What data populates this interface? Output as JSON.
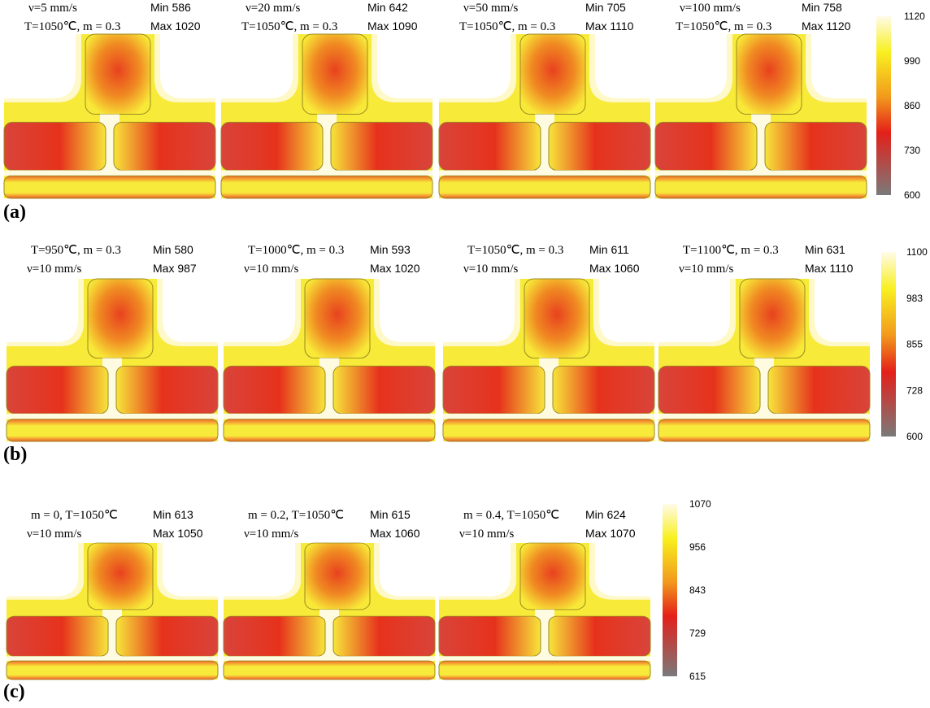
{
  "panels": [
    {
      "label": "(a)",
      "items": [
        {
          "line1": "ν=5 mm/s",
          "line2": "T=1050℃, m = 0.3",
          "min": "Min 586",
          "max": "Max 1020"
        },
        {
          "line1": "ν=20 mm/s",
          "line2": "T=1050℃, m = 0.3",
          "min": "Min 642",
          "max": "Max 1090"
        },
        {
          "line1": "ν=50 mm/s",
          "line2": "T=1050℃, m = 0.3",
          "min": "Min 705",
          "max": "Max 1110"
        },
        {
          "line1": "ν=100 mm/s",
          "line2": "T=1050℃, m = 0.3",
          "min": "Min 758",
          "max": "Max 1120"
        }
      ],
      "colorbar": [
        "1120",
        "990",
        "860",
        "730",
        "600"
      ]
    },
    {
      "label": "(b)",
      "items": [
        {
          "line1": "T=950℃, m = 0.3",
          "line2": "ν=10 mm/s",
          "min": "Min  580",
          "max": "Max 987"
        },
        {
          "line1": "T=1000℃, m = 0.3",
          "line2": "ν=10 mm/s",
          "min": "Min  593",
          "max": "Max  1020"
        },
        {
          "line1": "T=1050℃, m = 0.3",
          "line2": "ν=10 mm/s",
          "min": "Min  611",
          "max": "Max 1060"
        },
        {
          "line1": "T=1100℃, m = 0.3",
          "line2": "ν=10 mm/s",
          "min": "Min  631",
          "max": "Max 1110"
        }
      ],
      "colorbar": [
        "1100",
        "983",
        "855",
        "728",
        "600"
      ]
    },
    {
      "label": "(c)",
      "items": [
        {
          "line1": "m = 0, T=1050℃",
          "line2": "ν=10 mm/s",
          "min": "Min 613",
          "max": "Max 1050"
        },
        {
          "line1": "m = 0.2, T=1050℃",
          "line2": "ν=10 mm/s",
          "min": "Min 615",
          "max": "Max 1060"
        },
        {
          "line1": "m = 0.4, T=1050℃",
          "line2": "ν=10 mm/s",
          "min": "Min 624",
          "max": "Max 1070"
        }
      ],
      "colorbar": [
        "1070",
        "956",
        "843",
        "729",
        "615"
      ]
    }
  ]
}
